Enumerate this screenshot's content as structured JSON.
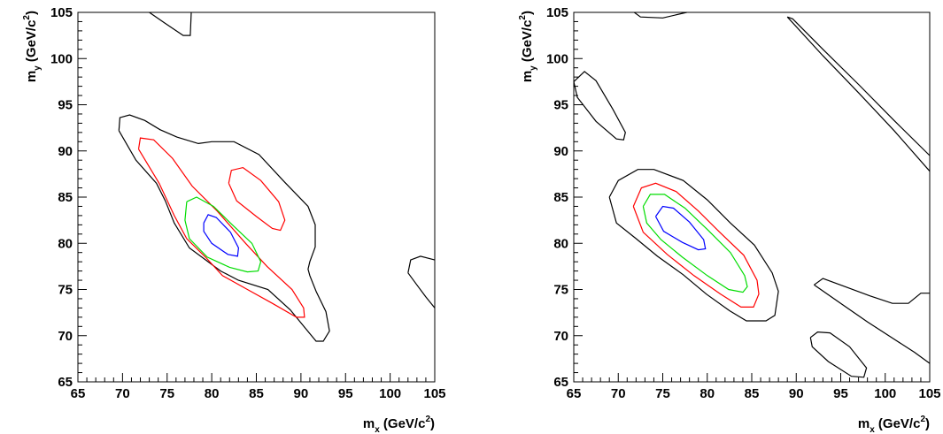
{
  "chart_data": [
    {
      "type": "contour",
      "xlabel": {
        "main": "m",
        "sub": "x",
        "unit_prefix": " (GeV/c",
        "sup": "2",
        "unit_suffix": ")"
      },
      "ylabel": {
        "main": "m",
        "sub": "y",
        "unit_prefix": " (GeV/c",
        "sup": "2",
        "unit_suffix": ")"
      },
      "xlim": [
        65,
        105
      ],
      "ylim": [
        65,
        105
      ],
      "xticks": [
        "65",
        "70",
        "75",
        "80",
        "85",
        "90",
        "95",
        "100",
        "105"
      ],
      "yticks": [
        "65",
        "70",
        "75",
        "80",
        "85",
        "90",
        "95",
        "100",
        "105"
      ],
      "contours": [
        {
          "color": "#000000",
          "points": [
            [
              73,
              105
            ],
            [
              74.8,
              103.8
            ],
            [
              76.8,
              102.5
            ],
            [
              77.6,
              102.5
            ],
            [
              77.7,
              105
            ]
          ]
        },
        {
          "color": "#000000",
          "points": [
            [
              69.6,
              92.2
            ],
            [
              69.7,
              93.6
            ],
            [
              70.8,
              93.9
            ],
            [
              72.5,
              93.3
            ],
            [
              74.2,
              92.3
            ],
            [
              76.1,
              91.5
            ],
            [
              78.5,
              90.8
            ],
            [
              80,
              91
            ],
            [
              82.5,
              91
            ],
            [
              85.3,
              89.6
            ],
            [
              88.2,
              86.6
            ],
            [
              90.8,
              84
            ],
            [
              91.6,
              82
            ],
            [
              91.6,
              79.6
            ],
            [
              91,
              78
            ],
            [
              90.8,
              77.2
            ],
            [
              91,
              76.5
            ],
            [
              91.7,
              74.8
            ],
            [
              92.8,
              72.6
            ],
            [
              93.2,
              70.5
            ],
            [
              92.5,
              69.4
            ],
            [
              91.7,
              69.4
            ],
            [
              90.5,
              70.8
            ],
            [
              88.8,
              72.8
            ],
            [
              86.3,
              75
            ],
            [
              83,
              76
            ],
            [
              81,
              77
            ],
            [
              77.5,
              79.5
            ],
            [
              75.8,
              82.2
            ],
            [
              74.8,
              84.6
            ],
            [
              73.8,
              86.5
            ],
            [
              71.5,
              89
            ],
            [
              69.6,
              92.2
            ]
          ]
        },
        {
          "color": "#000000",
          "points": [
            [
              102,
              76.8
            ],
            [
              102.3,
              78.2
            ],
            [
              103.4,
              78.6
            ],
            [
              105,
              78.2
            ]
          ]
        },
        {
          "color": "#000000",
          "points": [
            [
              102,
              76.8
            ],
            [
              103,
              75.5
            ],
            [
              104,
              74.2
            ],
            [
              105,
              73
            ]
          ]
        },
        {
          "color": "#ff0000",
          "points": [
            [
              71.8,
              90.2
            ],
            [
              72,
              91.4
            ],
            [
              73.5,
              91.2
            ],
            [
              75.6,
              89.2
            ],
            [
              77.8,
              86.2
            ],
            [
              80.6,
              83.5
            ],
            [
              83.8,
              80
            ],
            [
              86.2,
              77.5
            ],
            [
              89,
              75
            ],
            [
              90.3,
              73
            ],
            [
              90.4,
              72
            ],
            [
              89.5,
              72
            ],
            [
              86.8,
              73.5
            ],
            [
              84,
              75
            ],
            [
              81.2,
              76.5
            ],
            [
              79.3,
              78.5
            ],
            [
              77.2,
              80.5
            ],
            [
              75.8,
              83
            ],
            [
              74.1,
              86.5
            ],
            [
              71.8,
              90.2
            ]
          ]
        },
        {
          "color": "#ff0000",
          "points": [
            [
              81.9,
              86.5
            ],
            [
              82.2,
              87.9
            ],
            [
              83.5,
              88.2
            ],
            [
              85.5,
              86.8
            ],
            [
              87.5,
              84.5
            ],
            [
              88.2,
              82.5
            ],
            [
              87.7,
              81.4
            ],
            [
              86.8,
              81.6
            ],
            [
              85,
              82.9
            ],
            [
              82.8,
              84.6
            ],
            [
              81.9,
              86.5
            ]
          ]
        },
        {
          "color": "#00dd00",
          "points": [
            [
              77.2,
              84.5
            ],
            [
              78.3,
              85
            ],
            [
              80.2,
              84
            ],
            [
              82.3,
              82
            ],
            [
              84.5,
              80
            ],
            [
              85.5,
              78
            ],
            [
              85.2,
              77
            ],
            [
              84,
              76.9
            ],
            [
              82,
              77.4
            ],
            [
              79.5,
              78.5
            ],
            [
              77.5,
              80.5
            ],
            [
              77,
              82.5
            ],
            [
              77.2,
              84.5
            ]
          ]
        },
        {
          "color": "#0000ff",
          "points": [
            [
              79.1,
              82.2
            ],
            [
              79.6,
              83.1
            ],
            [
              80.5,
              82.8
            ],
            [
              82.1,
              81.2
            ],
            [
              83,
              79.5
            ],
            [
              82.9,
              78.6
            ],
            [
              81.8,
              78.8
            ],
            [
              80,
              80
            ],
            [
              79.1,
              81.3
            ],
            [
              79.1,
              82.2
            ]
          ]
        }
      ]
    },
    {
      "type": "contour",
      "xlabel": {
        "main": "m",
        "sub": "x",
        "unit_prefix": " (GeV/c",
        "sup": "2",
        "unit_suffix": ")"
      },
      "ylabel": {
        "main": "m",
        "sub": "y",
        "unit_prefix": " (GeV/c",
        "sup": "2",
        "unit_suffix": ")"
      },
      "xlim": [
        65,
        105
      ],
      "ylim": [
        65,
        105
      ],
      "xticks": [
        "65",
        "70",
        "75",
        "80",
        "85",
        "90",
        "95",
        "100",
        "105"
      ],
      "yticks": [
        "65",
        "70",
        "75",
        "80",
        "85",
        "90",
        "95",
        "100",
        "105"
      ],
      "contours": [
        {
          "color": "#000000",
          "points": [
            [
              71.8,
              105
            ],
            [
              72.5,
              104.5
            ],
            [
              75,
              104.4
            ],
            [
              77.7,
              105
            ]
          ]
        },
        {
          "color": "#000000",
          "points": [
            [
              65,
              97.5
            ],
            [
              66.2,
              98.6
            ],
            [
              67.5,
              97.6
            ],
            [
              69.4,
              94.5
            ],
            [
              70.8,
              92
            ],
            [
              70.6,
              91.2
            ],
            [
              69.8,
              91.3
            ],
            [
              67.5,
              93.2
            ],
            [
              65.4,
              95.8
            ],
            [
              65,
              97.5
            ]
          ]
        },
        {
          "color": "#000000",
          "points": [
            [
              89,
              104.5
            ],
            [
              89.6,
              104.3
            ],
            [
              93,
              101
            ],
            [
              97,
              97.2
            ],
            [
              101,
              93.3
            ],
            [
              105,
              89.5
            ]
          ]
        },
        {
          "color": "#000000",
          "points": [
            [
              89,
              104.5
            ],
            [
              93,
              100.3
            ],
            [
              97,
              96.3
            ],
            [
              101,
              92.2
            ],
            [
              105,
              87.8
            ]
          ]
        },
        {
          "color": "#000000",
          "points": [
            [
              69,
              85
            ],
            [
              70,
              86.8
            ],
            [
              72.2,
              88
            ],
            [
              74,
              88
            ],
            [
              77.3,
              86.8
            ],
            [
              80,
              84.7
            ],
            [
              82.6,
              82.2
            ],
            [
              85.3,
              79.8
            ],
            [
              87.3,
              76.8
            ],
            [
              88,
              74.8
            ],
            [
              87.6,
              72.2
            ],
            [
              86.6,
              71.6
            ],
            [
              84.4,
              71.6
            ],
            [
              82.5,
              72.7
            ],
            [
              79.9,
              74.5
            ],
            [
              77.3,
              76.6
            ],
            [
              74.4,
              78.6
            ],
            [
              72,
              80.5
            ],
            [
              69.8,
              82.2
            ],
            [
              69,
              85
            ]
          ]
        },
        {
          "color": "#000000",
          "points": [
            [
              92,
              75.5
            ],
            [
              93,
              76.2
            ],
            [
              95.8,
              75.2
            ],
            [
              98.3,
              74.3
            ],
            [
              100.8,
              73.5
            ],
            [
              102.6,
              73.5
            ],
            [
              104,
              74.6
            ],
            [
              105,
              74.6
            ]
          ]
        },
        {
          "color": "#000000",
          "points": [
            [
              92,
              75.5
            ],
            [
              95,
              73.5
            ],
            [
              98,
              71.5
            ],
            [
              101.2,
              69.5
            ],
            [
              103.3,
              68.2
            ],
            [
              105,
              67
            ]
          ]
        },
        {
          "color": "#000000",
          "points": [
            [
              91.6,
              69.8
            ],
            [
              92.4,
              70.4
            ],
            [
              93.8,
              70.3
            ],
            [
              96,
              68.8
            ],
            [
              97.9,
              66.5
            ],
            [
              97.6,
              65.5
            ],
            [
              96.2,
              65.6
            ],
            [
              93.6,
              67.2
            ],
            [
              91.8,
              68.8
            ],
            [
              91.6,
              69.8
            ]
          ]
        },
        {
          "color": "#ff0000",
          "points": [
            [
              71.7,
              84
            ],
            [
              72.6,
              86
            ],
            [
              74.2,
              86.5
            ],
            [
              76.5,
              85.6
            ],
            [
              79,
              83.5
            ],
            [
              81.4,
              81.2
            ],
            [
              84.1,
              78.7
            ],
            [
              85.6,
              76
            ],
            [
              85.8,
              74.5
            ],
            [
              85.2,
              73.1
            ],
            [
              83.8,
              73.1
            ],
            [
              81.5,
              74.5
            ],
            [
              78.5,
              76.5
            ],
            [
              75.5,
              78.8
            ],
            [
              72.8,
              81.2
            ],
            [
              71.7,
              84
            ]
          ]
        },
        {
          "color": "#00dd00",
          "points": [
            [
              72.8,
              84
            ],
            [
              73.6,
              85.3
            ],
            [
              75.2,
              85.3
            ],
            [
              77.5,
              83.8
            ],
            [
              80,
              81.5
            ],
            [
              82.6,
              79
            ],
            [
              84.2,
              76.5
            ],
            [
              84.5,
              75.3
            ],
            [
              84,
              74.7
            ],
            [
              82.4,
              75
            ],
            [
              80,
              76.5
            ],
            [
              77.2,
              78.5
            ],
            [
              74.8,
              80.4
            ],
            [
              73.2,
              82.2
            ],
            [
              72.8,
              84
            ]
          ]
        },
        {
          "color": "#0000ff",
          "points": [
            [
              74.2,
              82.9
            ],
            [
              75,
              84
            ],
            [
              76.2,
              83.8
            ],
            [
              78,
              82.3
            ],
            [
              79.6,
              80.4
            ],
            [
              79.8,
              79.4
            ],
            [
              79,
              79.3
            ],
            [
              77.2,
              80.1
            ],
            [
              75.1,
              81.3
            ],
            [
              74.2,
              82.9
            ]
          ]
        }
      ]
    }
  ]
}
